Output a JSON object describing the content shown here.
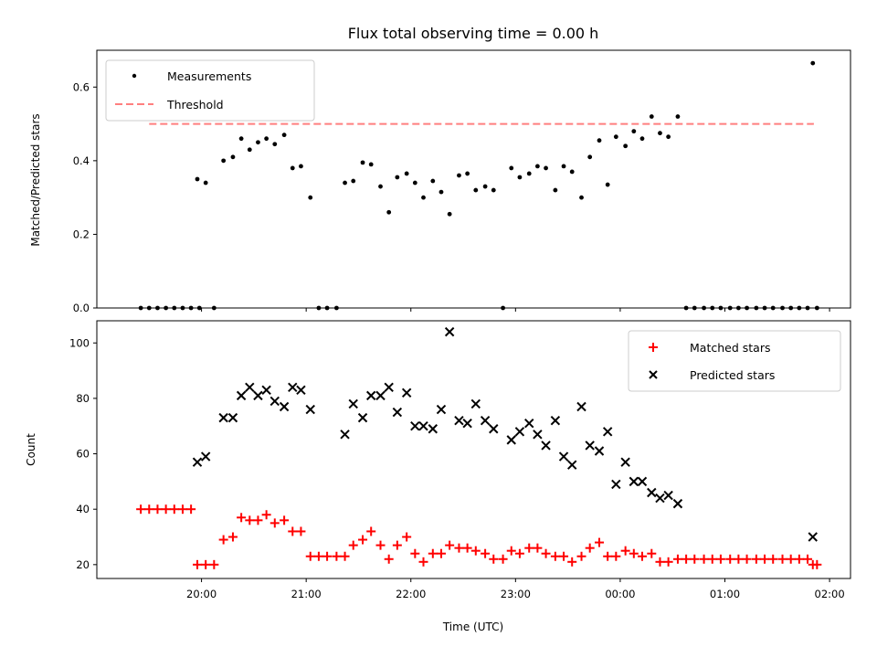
{
  "chart_data": {
    "type": "scatter",
    "title": "Flux total observing time = 0.00 h",
    "x_axis_label": "Time (UTC)",
    "x_ticks": [
      "20:00",
      "21:00",
      "22:00",
      "23:00",
      "00:00",
      "01:00",
      "02:00"
    ],
    "x_range_hours_from_midnight_prev_day": [
      19.0,
      26.2
    ],
    "panels": [
      {
        "name": "top",
        "ylabel": "Matched/Predicted stars",
        "ylim": [
          0.0,
          0.7
        ],
        "yticks": [
          "0.0",
          "0.2",
          "0.4",
          "0.6"
        ],
        "threshold": {
          "name": "Threshold",
          "value": 0.5,
          "x_start": 19.5,
          "x_end": 25.85,
          "color": "#ff7f7f"
        },
        "series": [
          {
            "name": "Measurements",
            "color": "#000000",
            "x": [
              19.42,
              19.5,
              19.58,
              19.66,
              19.74,
              19.82,
              19.9,
              19.98,
              19.96,
              20.04,
              20.12,
              20.21,
              20.3,
              20.38,
              20.46,
              20.54,
              20.62,
              20.7,
              20.79,
              20.87,
              20.95,
              21.04,
              21.12,
              21.2,
              21.29,
              21.37,
              21.45,
              21.54,
              21.62,
              21.71,
              21.79,
              21.87,
              21.96,
              22.04,
              22.12,
              22.21,
              22.29,
              22.37,
              22.46,
              22.54,
              22.62,
              22.71,
              22.79,
              22.88,
              22.96,
              23.04,
              23.13,
              23.21,
              23.29,
              23.38,
              23.46,
              23.54,
              23.63,
              23.71,
              23.8,
              23.88,
              23.96,
              24.05,
              24.13,
              24.21,
              24.3,
              24.38,
              24.46,
              24.55,
              24.63,
              24.71,
              24.8,
              24.88,
              24.96,
              25.05,
              25.13,
              25.21,
              25.3,
              25.38,
              25.46,
              25.55,
              25.63,
              25.71,
              25.79,
              25.84,
              25.88
            ],
            "y": [
              0,
              0,
              0,
              0,
              0,
              0,
              0,
              0,
              0.35,
              0.34,
              0.0,
              0.4,
              0.41,
              0.46,
              0.43,
              0.45,
              0.46,
              0.445,
              0.47,
              0.38,
              0.385,
              0.3,
              0,
              0,
              0,
              0.34,
              0.345,
              0.395,
              0.39,
              0.33,
              0.26,
              0.355,
              0.365,
              0.34,
              0.3,
              0.345,
              0.315,
              0.255,
              0.36,
              0.365,
              0.32,
              0.33,
              0.32,
              0,
              0.38,
              0.355,
              0.365,
              0.385,
              0.38,
              0.32,
              0.385,
              0.37,
              0.3,
              0.41,
              0.455,
              0.335,
              0.465,
              0.44,
              0.48,
              0.46,
              0.52,
              0.475,
              0.465,
              0.52,
              0,
              0,
              0,
              0,
              0,
              0,
              0,
              0,
              0,
              0,
              0,
              0,
              0,
              0,
              0,
              0.665,
              0
            ]
          }
        ],
        "legend": {
          "position": "upper left",
          "entries": [
            "Measurements",
            "Threshold"
          ]
        }
      },
      {
        "name": "bottom",
        "ylabel": "Count",
        "ylim": [
          15,
          108
        ],
        "yticks": [
          "20",
          "40",
          "60",
          "80",
          "100"
        ],
        "series": [
          {
            "name": "Matched stars",
            "color": "#ff0000",
            "marker": "+",
            "x": [
              19.42,
              19.5,
              19.58,
              19.66,
              19.74,
              19.82,
              19.9,
              19.96,
              20.04,
              20.12,
              20.21,
              20.3,
              20.38,
              20.46,
              20.54,
              20.62,
              20.7,
              20.79,
              20.87,
              20.95,
              21.04,
              21.12,
              21.2,
              21.29,
              21.37,
              21.45,
              21.54,
              21.62,
              21.71,
              21.79,
              21.87,
              21.96,
              22.04,
              22.12,
              22.21,
              22.29,
              22.37,
              22.46,
              22.54,
              22.62,
              22.71,
              22.79,
              22.88,
              22.96,
              23.04,
              23.13,
              23.21,
              23.29,
              23.38,
              23.46,
              23.54,
              23.63,
              23.71,
              23.8,
              23.88,
              23.96,
              24.05,
              24.13,
              24.21,
              24.3,
              24.38,
              24.46,
              24.55,
              24.63,
              24.71,
              24.8,
              24.88,
              24.96,
              25.05,
              25.13,
              25.21,
              25.3,
              25.38,
              25.46,
              25.55,
              25.63,
              25.71,
              25.79,
              25.84,
              25.88
            ],
            "y": [
              40,
              40,
              40,
              40,
              40,
              40,
              40,
              20,
              20,
              20,
              29,
              30,
              37,
              36,
              36,
              38,
              35,
              36,
              32,
              32,
              23,
              23,
              23,
              23,
              23,
              27,
              29,
              32,
              27,
              22,
              27,
              30,
              24,
              21,
              24,
              24,
              27,
              26,
              26,
              25,
              24,
              22,
              22,
              25,
              24,
              26,
              26,
              24,
              23,
              23,
              21,
              23,
              26,
              28,
              23,
              23,
              25,
              24,
              23,
              24,
              21,
              21,
              22,
              22,
              22,
              22,
              22,
              22,
              22,
              22,
              22,
              22,
              22,
              22,
              22,
              22,
              22,
              22,
              20,
              20
            ]
          },
          {
            "name": "Predicted stars",
            "color": "#000000",
            "marker": "x",
            "x": [
              19.96,
              20.04,
              20.21,
              20.3,
              20.38,
              20.46,
              20.54,
              20.62,
              20.7,
              20.79,
              20.87,
              20.95,
              21.04,
              21.37,
              21.45,
              21.54,
              21.62,
              21.71,
              21.79,
              21.87,
              21.96,
              22.04,
              22.12,
              22.21,
              22.29,
              22.37,
              22.46,
              22.54,
              22.62,
              22.71,
              22.79,
              22.96,
              23.04,
              23.13,
              23.21,
              23.29,
              23.38,
              23.46,
              23.54,
              23.63,
              23.71,
              23.8,
              23.88,
              23.96,
              24.05,
              24.13,
              24.21,
              24.3,
              24.38,
              24.46,
              24.55,
              25.84
            ],
            "y": [
              57,
              59,
              73,
              73,
              81,
              84,
              81,
              83,
              79,
              77,
              84,
              83,
              76,
              67,
              78,
              73,
              81,
              81,
              84,
              75,
              82,
              70,
              70,
              69,
              76,
              104,
              72,
              71,
              78,
              72,
              69,
              65,
              68,
              71,
              67,
              63,
              72,
              59,
              56,
              77,
              63,
              61,
              68,
              49,
              57,
              50,
              50,
              46,
              44,
              45,
              42,
              30
            ]
          }
        ],
        "legend": {
          "position": "upper right",
          "entries": [
            "Matched stars",
            "Predicted stars"
          ]
        }
      }
    ]
  }
}
